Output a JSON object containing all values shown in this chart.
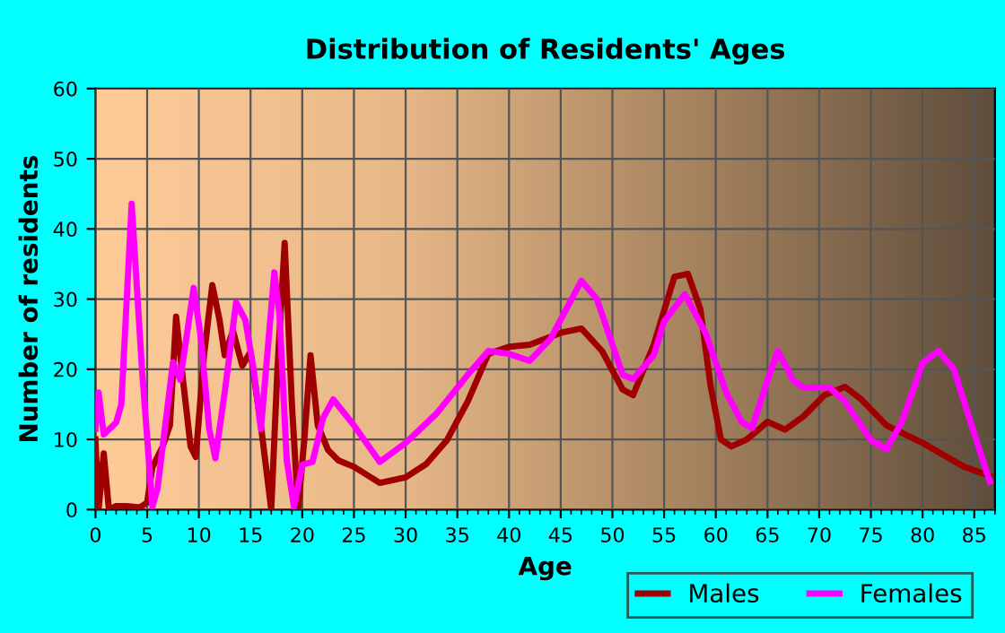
{
  "chart_data": {
    "type": "line",
    "title": "Distribution of Residents' Ages",
    "xlabel": "Age",
    "ylabel": "Number of residents",
    "xlim": [
      0,
      87
    ],
    "xticks": [
      0,
      5,
      10,
      15,
      20,
      25,
      30,
      35,
      40,
      45,
      50,
      55,
      60,
      65,
      70,
      75,
      80,
      85
    ],
    "ylim": [
      0,
      60
    ],
    "yticks": [
      0,
      10,
      20,
      30,
      40,
      50,
      60
    ],
    "grid": true,
    "legend": "bottom right",
    "marker": "none",
    "line_style": "solid",
    "series": [
      {
        "name": "Males",
        "color": "#a00000",
        "x": [
          0,
          0.3,
          0.8,
          1.3,
          2,
          3,
          4.3,
          5,
          5.5,
          6.5,
          7.2,
          7.8,
          8.5,
          9.2,
          9.7,
          10.5,
          11.3,
          12,
          12.5,
          13.3,
          14.2,
          15,
          16,
          17,
          17.6,
          18.3,
          19,
          19.6,
          20.2,
          20.8,
          21.5,
          22.5,
          23.5,
          25,
          27.5,
          30,
          32,
          34,
          36,
          38,
          40,
          42,
          45,
          47,
          49,
          51,
          52,
          54,
          56,
          57.3,
          58.5,
          59.5,
          60.5,
          61.5,
          63,
          65,
          66.7,
          68.5,
          70.5,
          72.5,
          74,
          76.5,
          80,
          84,
          86.5
        ],
        "values": [
          10,
          0,
          8,
          0,
          0.5,
          0.5,
          0.3,
          1,
          6,
          9,
          12,
          27.5,
          18,
          9,
          7.5,
          22,
          32,
          27,
          22,
          25.5,
          20.5,
          22.5,
          12,
          0,
          20,
          38,
          15,
          0,
          10,
          22,
          12,
          8.5,
          7,
          6.1,
          3.8,
          4.6,
          6.5,
          9.9,
          15.4,
          22.2,
          23.2,
          23.5,
          25.2,
          25.8,
          22.6,
          17.1,
          16.3,
          23.5,
          33.2,
          33.6,
          28.6,
          17.6,
          10,
          9,
          10,
          12.5,
          11.4,
          13.3,
          16.3,
          17.5,
          15.8,
          12,
          9.5,
          6.1,
          4.8
        ]
      },
      {
        "name": "Females",
        "color": "#ff00ff",
        "x": [
          0,
          0.3,
          0.8,
          2,
          2.5,
          3.5,
          4.5,
          5.5,
          6,
          7.5,
          8.2,
          9.5,
          10.2,
          11,
          11.6,
          12.5,
          13.6,
          14.5,
          15.3,
          16,
          17.3,
          17.8,
          18.5,
          19.2,
          20,
          21,
          22,
          23,
          25,
          27.5,
          30,
          33,
          36,
          38,
          40,
          42,
          44,
          47,
          48.5,
          51,
          52,
          54,
          55,
          57,
          59,
          61,
          62.5,
          63.5,
          65,
          66,
          67.5,
          68.5,
          71,
          72.5,
          75,
          76.5,
          78,
          80,
          81.5,
          83,
          85,
          86.5
        ],
        "values": [
          11.5,
          16.7,
          10.7,
          12.4,
          15,
          43.6,
          20,
          0.4,
          3,
          21,
          18.5,
          31.6,
          24.4,
          11.5,
          7.3,
          16.7,
          29.5,
          27,
          20,
          11.5,
          33.8,
          27.8,
          7,
          0.4,
          6.4,
          6.8,
          13,
          15.7,
          12,
          6.8,
          9.5,
          13.7,
          19.2,
          22.6,
          22.2,
          21.2,
          24.3,
          32.6,
          30,
          19.2,
          18.6,
          22,
          26.8,
          30.7,
          25.2,
          16.7,
          12.5,
          11.6,
          18.4,
          22.6,
          18.4,
          17.4,
          17.4,
          15.4,
          9.9,
          8.6,
          12.5,
          20.9,
          22.6,
          20.1,
          10.8,
          4
        ]
      }
    ]
  }
}
